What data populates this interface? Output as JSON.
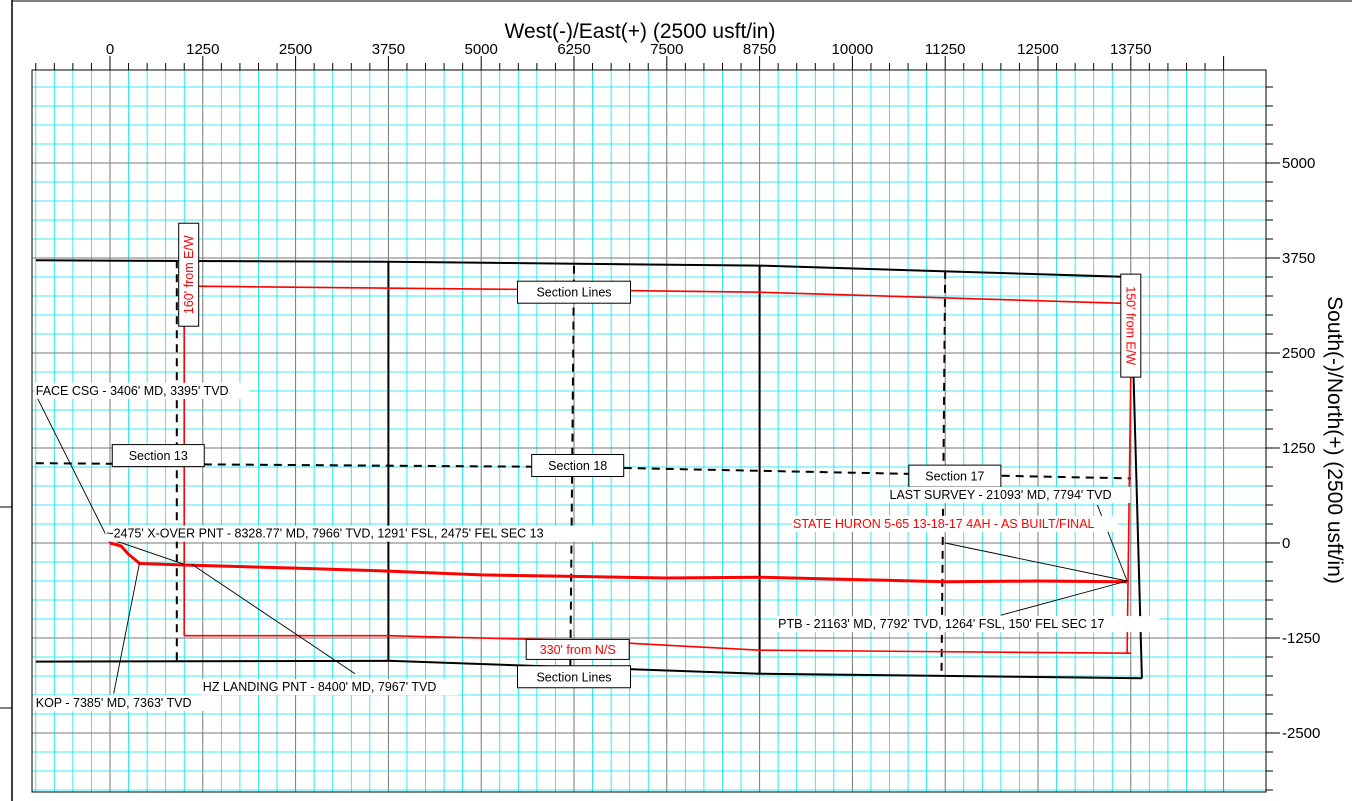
{
  "title": "West(-)/East(+) (2500 usft/in)",
  "right_axis_label": "South(-)/North(+) (2500 usft/in)",
  "colors": {
    "grid": "#00e5ee",
    "major_grid": "#777777",
    "black": "#000000",
    "red": "#ff0000",
    "frame": "#000000"
  },
  "x_axis": {
    "range": [
      -1000,
      14800
    ],
    "ticks": [
      0,
      1250,
      2500,
      3750,
      5000,
      6250,
      7500,
      8750,
      10000,
      11250,
      12500,
      13750
    ],
    "tick_labels": [
      "0",
      "1250",
      "2500",
      "3750",
      "5000",
      "6250",
      "7500",
      "8750",
      "10000",
      "11250",
      "12500",
      "13750"
    ]
  },
  "y_axis": {
    "range": [
      -3200,
      6400
    ],
    "ticks": [
      5000,
      3750,
      2500,
      1250,
      0,
      -1250,
      -2500
    ],
    "tick_labels": [
      "5000",
      "3750",
      "2500",
      "1250",
      "0",
      "-1250",
      "-2500"
    ]
  },
  "section_lines": [
    {
      "style": "solid",
      "points": [
        [
          -1000,
          3720
        ],
        [
          3750,
          3700
        ],
        [
          8750,
          3650
        ],
        [
          13750,
          3500
        ]
      ]
    },
    {
      "style": "solid",
      "points": [
        [
          -1000,
          -1560
        ],
        [
          3750,
          -1550
        ],
        [
          8750,
          -1720
        ],
        [
          13900,
          -1780
        ]
      ]
    },
    {
      "style": "solid",
      "points": [
        [
          3750,
          3700
        ],
        [
          3750,
          -1550
        ]
      ]
    },
    {
      "style": "solid",
      "points": [
        [
          8750,
          3650
        ],
        [
          8750,
          -1720
        ]
      ]
    },
    {
      "style": "solid",
      "points": [
        [
          13750,
          3500
        ],
        [
          13900,
          -1780
        ]
      ]
    },
    {
      "style": "dashed",
      "points": [
        [
          -1000,
          1050
        ],
        [
          6250,
          1000
        ],
        [
          13750,
          850
        ]
      ]
    },
    {
      "style": "dashed",
      "points": [
        [
          900,
          3720
        ],
        [
          900,
          -1560
        ]
      ]
    },
    {
      "style": "dashed",
      "points": [
        [
          6250,
          3650
        ],
        [
          6200,
          -1680
        ]
      ]
    },
    {
      "style": "dashed",
      "points": [
        [
          11250,
          3580
        ],
        [
          11200,
          -1750
        ]
      ]
    }
  ],
  "lease_lines": [
    {
      "points": [
        [
          1000,
          3380
        ],
        [
          6250,
          3330
        ],
        [
          8750,
          3300
        ],
        [
          13750,
          3150
        ]
      ]
    },
    {
      "points": [
        [
          1000,
          3380
        ],
        [
          1000,
          -1220
        ]
      ]
    },
    {
      "points": [
        [
          1000,
          -1220
        ],
        [
          3750,
          -1220
        ],
        [
          6250,
          -1280
        ],
        [
          8750,
          -1410
        ],
        [
          13750,
          -1450
        ]
      ]
    },
    {
      "points": [
        [
          13750,
          2250
        ],
        [
          13700,
          -1450
        ]
      ]
    }
  ],
  "wellbore": {
    "points": [
      [
        0,
        0
      ],
      [
        150,
        -40
      ],
      [
        250,
        -150
      ],
      [
        400,
        -270
      ],
      [
        1000,
        -290
      ],
      [
        2500,
        -330
      ],
      [
        3750,
        -370
      ],
      [
        5000,
        -420
      ],
      [
        6250,
        -440
      ],
      [
        7500,
        -460
      ],
      [
        8750,
        -450
      ],
      [
        10000,
        -480
      ],
      [
        11250,
        -510
      ],
      [
        12500,
        -500
      ],
      [
        13700,
        -510
      ]
    ]
  },
  "boxed_labels": [
    {
      "text": "Section Lines",
      "x": 6250,
      "y": 3300
    },
    {
      "text": "Section 13",
      "x": 650,
      "y": 1150
    },
    {
      "text": "Section 18",
      "x": 6300,
      "y": 1020
    },
    {
      "text": "Section 17",
      "x": 11380,
      "y": 880
    },
    {
      "text": "Section Lines",
      "x": 6250,
      "y": -1760
    }
  ],
  "red_boxed_labels": [
    {
      "text": "160' from E/W",
      "x": 1060,
      "y": 3530,
      "rotate": -90
    },
    {
      "text": "150' from E/W",
      "x": 13750,
      "y": 2860,
      "rotate": 90
    },
    {
      "text": "330' from N/S",
      "x": 6300,
      "y": -1400,
      "rotate": 0
    }
  ],
  "annotations": [
    {
      "text": "FACE CSG - 3406' MD, 3395' TVD",
      "x": -1000,
      "y": 1950,
      "color": "black",
      "leader": [
        [
          -1000,
          1950
        ],
        [
          0,
          0
        ]
      ]
    },
    {
      "text": "~2475' X-OVER PNT - 8328.77' MD, 7966' TVD, 1291' FSL, 2475' FEL SEC 13",
      "x": -50,
      "y": 70,
      "color": "black",
      "leader": [
        [
          -50,
          70
        ],
        [
          1000,
          -280
        ]
      ]
    },
    {
      "text": "HZ LANDING PNT - 8400' MD, 7967' TVD",
      "x": 1250,
      "y": -1950,
      "color": "black",
      "leader": [
        [
          3300,
          -1720
        ],
        [
          1100,
          -280
        ]
      ]
    },
    {
      "text": "KOP - 7385' MD, 7363' TVD",
      "x": -1000,
      "y": -2160,
      "color": "black",
      "leader": [
        [
          50,
          -1980
        ],
        [
          400,
          -250
        ]
      ]
    },
    {
      "text": "LAST SURVEY - 21093' MD, 7794' TVD",
      "x": 10500,
      "y": 580,
      "color": "black",
      "leader": [
        [
          13300,
          500
        ],
        [
          13700,
          -500
        ]
      ]
    },
    {
      "text": "STATE HURON 5-65 13-18-17 4AH - AS BUILT/FINAL",
      "x": 9200,
      "y": 200,
      "color": "red",
      "leader": [
        [
          11250,
          0
        ],
        [
          13700,
          -500
        ]
      ]
    },
    {
      "text": "PTB - 21163' MD, 7792' TVD, 1264' FSL, 150' FEL SEC 17",
      "x": 9000,
      "y": -1120,
      "color": "black",
      "leader": [
        [
          12000,
          -950
        ],
        [
          13700,
          -500
        ]
      ]
    }
  ]
}
